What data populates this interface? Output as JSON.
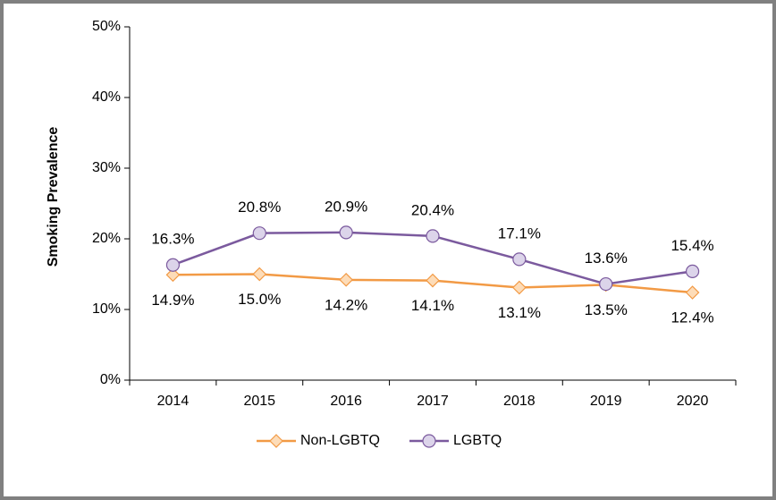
{
  "chart_data": {
    "type": "line",
    "y_label": "Smoking Prevalence",
    "categories": [
      "2014",
      "2015",
      "2016",
      "2017",
      "2018",
      "2019",
      "2020"
    ],
    "series": [
      {
        "name": "Non-LGBTQ",
        "color": "#f29a45",
        "marker_fill": "#fddcb8",
        "marker": "diamond",
        "values": [
          14.9,
          15.0,
          14.2,
          14.1,
          13.1,
          13.5,
          12.4
        ],
        "value_labels": [
          "14.9%",
          "15.0%",
          "14.2%",
          "14.1%",
          "13.1%",
          "13.5%",
          "12.4%"
        ]
      },
      {
        "name": "LGBTQ",
        "color": "#7b5a9e",
        "marker_fill": "#dcd4ea",
        "marker": "circle",
        "values": [
          16.3,
          20.8,
          20.9,
          20.4,
          17.1,
          13.6,
          15.4
        ],
        "value_labels": [
          "16.3%",
          "20.8%",
          "20.9%",
          "20.4%",
          "17.1%",
          "13.6%",
          "15.4%"
        ]
      }
    ],
    "ylim": [
      0,
      50
    ],
    "yticks": [
      {
        "value": 0,
        "label": "0%"
      },
      {
        "value": 10,
        "label": "10%"
      },
      {
        "value": 20,
        "label": "20%"
      },
      {
        "value": 30,
        "label": "30%"
      },
      {
        "value": 40,
        "label": "40%"
      },
      {
        "value": 50,
        "label": "50%"
      }
    ],
    "grid": false,
    "legend": "bottom"
  }
}
